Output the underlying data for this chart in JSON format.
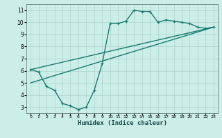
{
  "title": "",
  "xlabel": "Humidex (Indice chaleur)",
  "ylabel": "",
  "background_color": "#cceee8",
  "line_color": "#1a7a6e",
  "grid_color": "#aad4cc",
  "xlim": [
    -0.5,
    23.5
  ],
  "ylim": [
    2.5,
    11.5
  ],
  "xticks": [
    0,
    1,
    2,
    3,
    4,
    5,
    6,
    7,
    8,
    9,
    10,
    11,
    12,
    13,
    14,
    15,
    16,
    17,
    18,
    19,
    20,
    21,
    22,
    23
  ],
  "yticks": [
    3,
    4,
    5,
    6,
    7,
    8,
    9,
    10,
    11
  ],
  "line1_x": [
    0,
    1,
    2,
    3,
    4,
    5,
    6,
    7,
    8,
    9,
    10,
    11,
    12,
    13,
    14,
    15,
    16,
    17,
    18,
    19,
    20,
    21,
    22,
    23
  ],
  "line1_y": [
    6.1,
    5.9,
    4.7,
    4.4,
    3.3,
    3.1,
    2.8,
    3.0,
    4.4,
    6.6,
    9.9,
    9.9,
    10.1,
    11.0,
    10.9,
    10.9,
    10.0,
    10.2,
    10.1,
    10.0,
    9.9,
    9.6,
    9.5,
    9.6
  ],
  "line2_x": [
    0,
    23
  ],
  "line2_y": [
    6.1,
    9.6
  ],
  "line3_x": [
    0,
    23
  ],
  "line3_y": [
    5.0,
    9.6
  ]
}
